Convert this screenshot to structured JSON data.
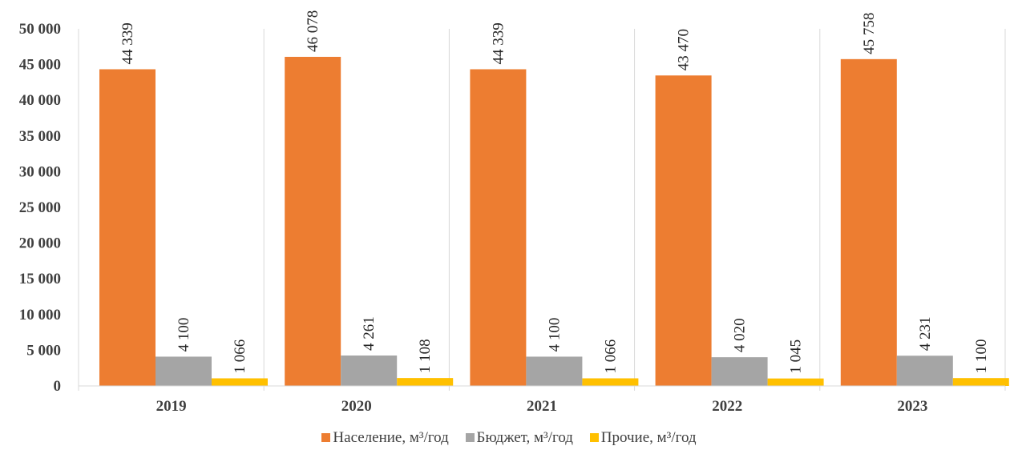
{
  "chart_data": {
    "type": "bar",
    "categories": [
      "2019",
      "2020",
      "2021",
      "2022",
      "2023"
    ],
    "series": [
      {
        "name": "Население, м³/год",
        "color": "#ED7D31",
        "values": [
          44339,
          46078,
          44339,
          43470,
          45758
        ],
        "labels": [
          "44 339",
          "46 078",
          "44 339",
          "43 470",
          "45 758"
        ]
      },
      {
        "name": "Бюджет, м³/год",
        "color": "#A5A5A5",
        "values": [
          4100,
          4261,
          4100,
          4020,
          4231
        ],
        "labels": [
          "4 100",
          "4 261",
          "4 100",
          "4 020",
          "4 231"
        ]
      },
      {
        "name": "Прочие, м³/год",
        "color": "#FFC000",
        "values": [
          1066,
          1108,
          1066,
          1045,
          1100
        ],
        "labels": [
          "1 066",
          "1 108",
          "1 066",
          "1 045",
          "1 100"
        ]
      }
    ],
    "yticks": [
      0,
      5000,
      10000,
      15000,
      20000,
      25000,
      30000,
      35000,
      40000,
      45000,
      50000
    ],
    "ytick_labels": [
      "0",
      "5 000",
      "10 000",
      "15 000",
      "20 000",
      "25 000",
      "30 000",
      "35 000",
      "40 000",
      "45 000",
      "50 000"
    ],
    "ylim": [
      0,
      50000
    ],
    "grid": "vertical-category-separators",
    "legend_position": "bottom"
  }
}
